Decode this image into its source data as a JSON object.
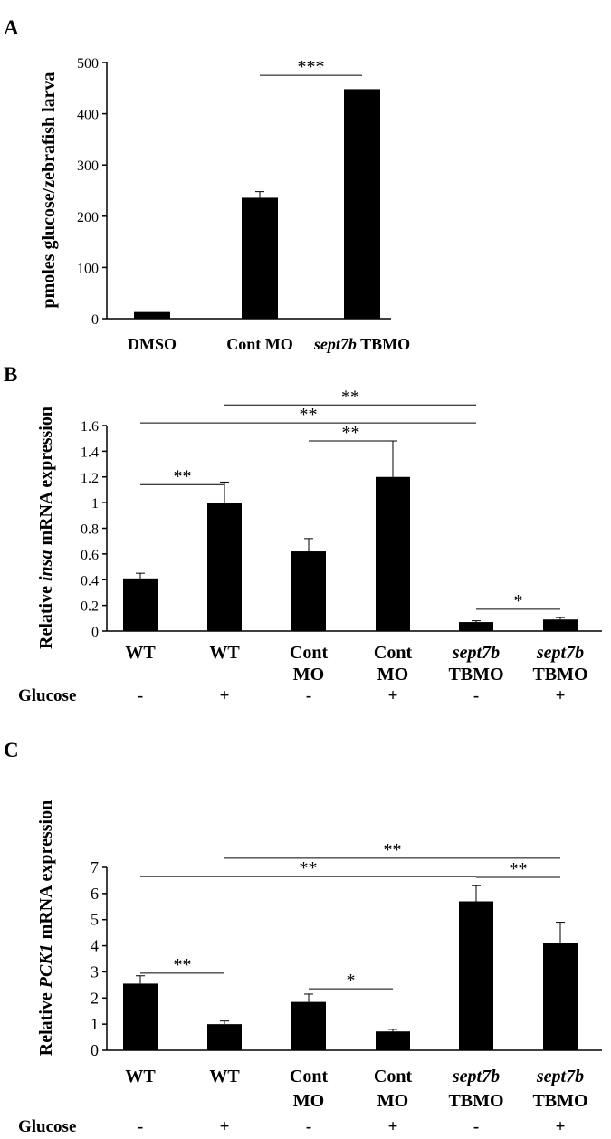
{
  "chart_data": [
    {
      "panel": "A",
      "type": "bar",
      "ylabel": "pmoles glucose/zebrafish larva",
      "ylim": [
        0,
        500
      ],
      "yticks": [
        0,
        100,
        200,
        300,
        400,
        500
      ],
      "categories": [
        {
          "parts": [
            {
              "t": "DMSO",
              "i": false
            }
          ]
        },
        {
          "parts": [
            {
              "t": "Cont MO",
              "i": false
            }
          ]
        },
        {
          "parts": [
            {
              "t": "sept7b",
              "i": true
            },
            {
              "t": " TBMO",
              "i": false
            }
          ]
        }
      ],
      "values": [
        13,
        236,
        448
      ],
      "errors": [
        0,
        12,
        0
      ],
      "significance": [
        {
          "from": 1,
          "to": 2,
          "label": "***",
          "y": 475
        }
      ]
    },
    {
      "panel": "B",
      "type": "bar",
      "ylabel_parts": [
        {
          "t": "Relative ",
          "i": false
        },
        {
          "t": "insa",
          "i": true
        },
        {
          "t": " mRNA expression",
          "i": false
        }
      ],
      "ylim": [
        0,
        1.6
      ],
      "yticks": [
        "0",
        "0.2",
        "0.4",
        "0.6",
        "0.8",
        "1",
        "1.2",
        "1.4",
        "1.6"
      ],
      "categories": [
        [
          {
            "t": "WT",
            "i": false
          }
        ],
        [
          {
            "t": "WT",
            "i": false
          }
        ],
        [
          {
            "t": "Cont",
            "i": false
          },
          {
            "t": "MO",
            "i": false
          }
        ],
        [
          {
            "t": "Cont",
            "i": false
          },
          {
            "t": "MO",
            "i": false
          }
        ],
        [
          {
            "t": "sept7b",
            "i": true
          },
          {
            "t": "TBMO",
            "i": false
          }
        ],
        [
          {
            "t": "sept7b",
            "i": true
          },
          {
            "t": "TBMO",
            "i": false
          }
        ]
      ],
      "values": [
        0.41,
        1.0,
        0.62,
        1.2,
        0.07,
        0.09
      ],
      "errors": [
        0.04,
        0.16,
        0.1,
        0.28,
        0.01,
        0.015
      ],
      "glucose_label": "Glucose",
      "glucose": [
        "-",
        "+",
        "-",
        "+",
        "-",
        "+"
      ],
      "significance": [
        {
          "from": 0,
          "to": 1,
          "label": "**",
          "y": 1.14
        },
        {
          "from": 2,
          "to": 3,
          "label": "**",
          "y": 1.48
        },
        {
          "from": 0,
          "to": 4,
          "label": "**",
          "y": 1.62
        },
        {
          "from": 1,
          "to": 4,
          "label": "**",
          "y": 1.76
        },
        {
          "from": 4,
          "to": 5,
          "label": "*",
          "y": 0.17
        }
      ]
    },
    {
      "panel": "C",
      "type": "bar",
      "ylabel_parts": [
        {
          "t": "Relative ",
          "i": false
        },
        {
          "t": "PCK1",
          "i": true
        },
        {
          "t": " mRNA expression",
          "i": false
        }
      ],
      "ylim": [
        0,
        7
      ],
      "yticks": [
        "0",
        "1",
        "2",
        "3",
        "4",
        "5",
        "6",
        "7"
      ],
      "categories": [
        [
          {
            "t": "WT",
            "i": false
          }
        ],
        [
          {
            "t": "WT",
            "i": false
          }
        ],
        [
          {
            "t": "Cont",
            "i": false
          },
          {
            "t": "MO",
            "i": false
          }
        ],
        [
          {
            "t": "Cont",
            "i": false
          },
          {
            "t": "MO",
            "i": false
          }
        ],
        [
          {
            "t": "sept7b",
            "i": true
          },
          {
            "t": "TBMO",
            "i": false
          }
        ],
        [
          {
            "t": "sept7b",
            "i": true
          },
          {
            "t": "TBMO",
            "i": false
          }
        ]
      ],
      "values": [
        2.55,
        1.0,
        1.85,
        0.72,
        5.7,
        4.1
      ],
      "errors": [
        0.3,
        0.12,
        0.3,
        0.08,
        0.6,
        0.8
      ],
      "glucose_label": "Glucose",
      "glucose": [
        "-",
        "+",
        "-",
        "+",
        "-",
        "+"
      ],
      "significance": [
        {
          "from": 0,
          "to": 1,
          "label": "**",
          "y": 2.95
        },
        {
          "from": 2,
          "to": 3,
          "label": "*",
          "y": 2.35
        },
        {
          "from": 4,
          "to": 5,
          "label": "**",
          "y": 6.62
        },
        {
          "from": 0,
          "to": 4,
          "label": "**",
          "y": 6.65
        },
        {
          "from": 1,
          "to": 5,
          "label": "**",
          "y": 7.35
        }
      ]
    }
  ]
}
